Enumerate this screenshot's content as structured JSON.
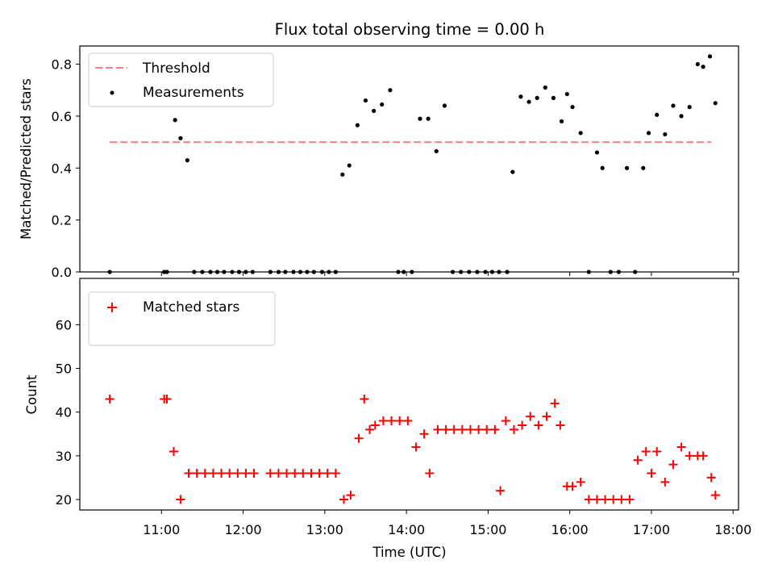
{
  "title": "Flux total observing time = 0.00 h",
  "xlabel": "Time (UTC)",
  "x_ticks": [
    "11:00",
    "12:00",
    "13:00",
    "14:00",
    "15:00",
    "16:00",
    "17:00",
    "18:00"
  ],
  "chart_data": [
    {
      "type": "scatter",
      "ylabel": "Matched/Predicted stars",
      "ylim": [
        0,
        0.87
      ],
      "xlim": [
        "10:00",
        "18:04"
      ],
      "y_ticks": [
        "0.0",
        "0.2",
        "0.4",
        "0.6",
        "0.8"
      ],
      "legend_placement": "upper-left",
      "threshold": {
        "name": "Threshold",
        "value": 0.5,
        "x_start": "10:22",
        "x_end": "17:44",
        "color": "#ff7f7f"
      },
      "series": [
        {
          "name": "Measurements",
          "color": "#000000",
          "x": [
            "10:22",
            "11:02",
            "11:04",
            "11:10",
            "11:14",
            "11:19",
            "11:24",
            "11:30",
            "11:36",
            "11:41",
            "11:46",
            "11:52",
            "11:57",
            "12:02",
            "12:07",
            "12:20",
            "12:26",
            "12:31",
            "12:37",
            "12:42",
            "12:47",
            "12:52",
            "12:58",
            "13:03",
            "13:08",
            "13:13",
            "13:18",
            "13:24",
            "13:30",
            "13:36",
            "13:42",
            "13:48",
            "13:54",
            "13:58",
            "14:04",
            "14:10",
            "14:16",
            "14:22",
            "14:28",
            "14:34",
            "14:40",
            "14:46",
            "14:52",
            "14:58",
            "15:03",
            "15:08",
            "15:14",
            "15:18",
            "15:24",
            "15:30",
            "15:36",
            "15:42",
            "15:48",
            "15:54",
            "15:58",
            "16:02",
            "16:08",
            "16:14",
            "16:20",
            "16:24",
            "16:30",
            "16:36",
            "16:42",
            "16:48",
            "16:54",
            "16:58",
            "17:04",
            "17:10",
            "17:16",
            "17:22",
            "17:28",
            "17:34",
            "17:38",
            "17:43",
            "17:47"
          ],
          "y": [
            0,
            0,
            0,
            0.585,
            0.515,
            0.43,
            0,
            0,
            0,
            0,
            0,
            0,
            0,
            0,
            0,
            0,
            0,
            0,
            0,
            0,
            0,
            0,
            0,
            0,
            0,
            0.375,
            0.41,
            0.565,
            0.66,
            0.62,
            0.645,
            0.7,
            0,
            0,
            0,
            0.59,
            0.59,
            0.465,
            0.64,
            0,
            0,
            0,
            0,
            0,
            0,
            0,
            0,
            0.385,
            0.675,
            0.655,
            0.67,
            0.71,
            0.67,
            0.58,
            0.685,
            0.635,
            0.535,
            0,
            0.46,
            0.4,
            0,
            0,
            0.4,
            0,
            0.4,
            0.535,
            0.605,
            0.53,
            0.64,
            0.6,
            0.635,
            0.8,
            0.79,
            0.83,
            0.65
          ]
        }
      ]
    },
    {
      "type": "scatter",
      "ylabel": "Count",
      "ylim": [
        17.6,
        70.6
      ],
      "xlim": [
        "10:00",
        "18:04"
      ],
      "y_ticks": [
        "20",
        "30",
        "40",
        "50",
        "60"
      ],
      "legend_placement": "upper-left",
      "series": [
        {
          "name": "Matched stars",
          "marker": "plus",
          "color": "#ff0000",
          "x": [
            "10:22",
            "11:02",
            "11:04",
            "11:09",
            "11:14",
            "11:20",
            "11:26",
            "11:32",
            "11:38",
            "11:44",
            "11:50",
            "11:56",
            "12:02",
            "12:08",
            "12:20",
            "12:26",
            "12:32",
            "12:38",
            "12:44",
            "12:50",
            "12:56",
            "13:02",
            "13:08",
            "13:14",
            "13:19",
            "13:25",
            "13:29",
            "13:33",
            "13:37",
            "13:43",
            "13:49",
            "13:55",
            "14:01",
            "14:07",
            "14:13",
            "14:17",
            "14:23",
            "14:29",
            "14:35",
            "14:41",
            "14:47",
            "14:53",
            "14:59",
            "15:05",
            "15:09",
            "15:13",
            "15:19",
            "15:25",
            "15:31",
            "15:37",
            "15:43",
            "15:49",
            "15:53",
            "15:58",
            "16:02",
            "16:08",
            "16:14",
            "16:20",
            "16:26",
            "16:32",
            "16:38",
            "16:44",
            "16:50",
            "16:56",
            "17:00",
            "17:04",
            "17:10",
            "17:16",
            "17:22",
            "17:28",
            "17:34",
            "17:38",
            "17:44",
            "17:47"
          ],
          "y": [
            43,
            43,
            43,
            31,
            20,
            26,
            26,
            26,
            26,
            26,
            26,
            26,
            26,
            26,
            26,
            26,
            26,
            26,
            26,
            26,
            26,
            26,
            26,
            20,
            21,
            34,
            43,
            36,
            37,
            38,
            38,
            38,
            38,
            32,
            35,
            26,
            36,
            36,
            36,
            36,
            36,
            36,
            36,
            36,
            22,
            38,
            36,
            37,
            39,
            37,
            39,
            42,
            37,
            23,
            23,
            24,
            20,
            20,
            20,
            20,
            20,
            20,
            29,
            31,
            26,
            31,
            24,
            28,
            32,
            30,
            30,
            30,
            25,
            21
          ]
        }
      ]
    }
  ]
}
